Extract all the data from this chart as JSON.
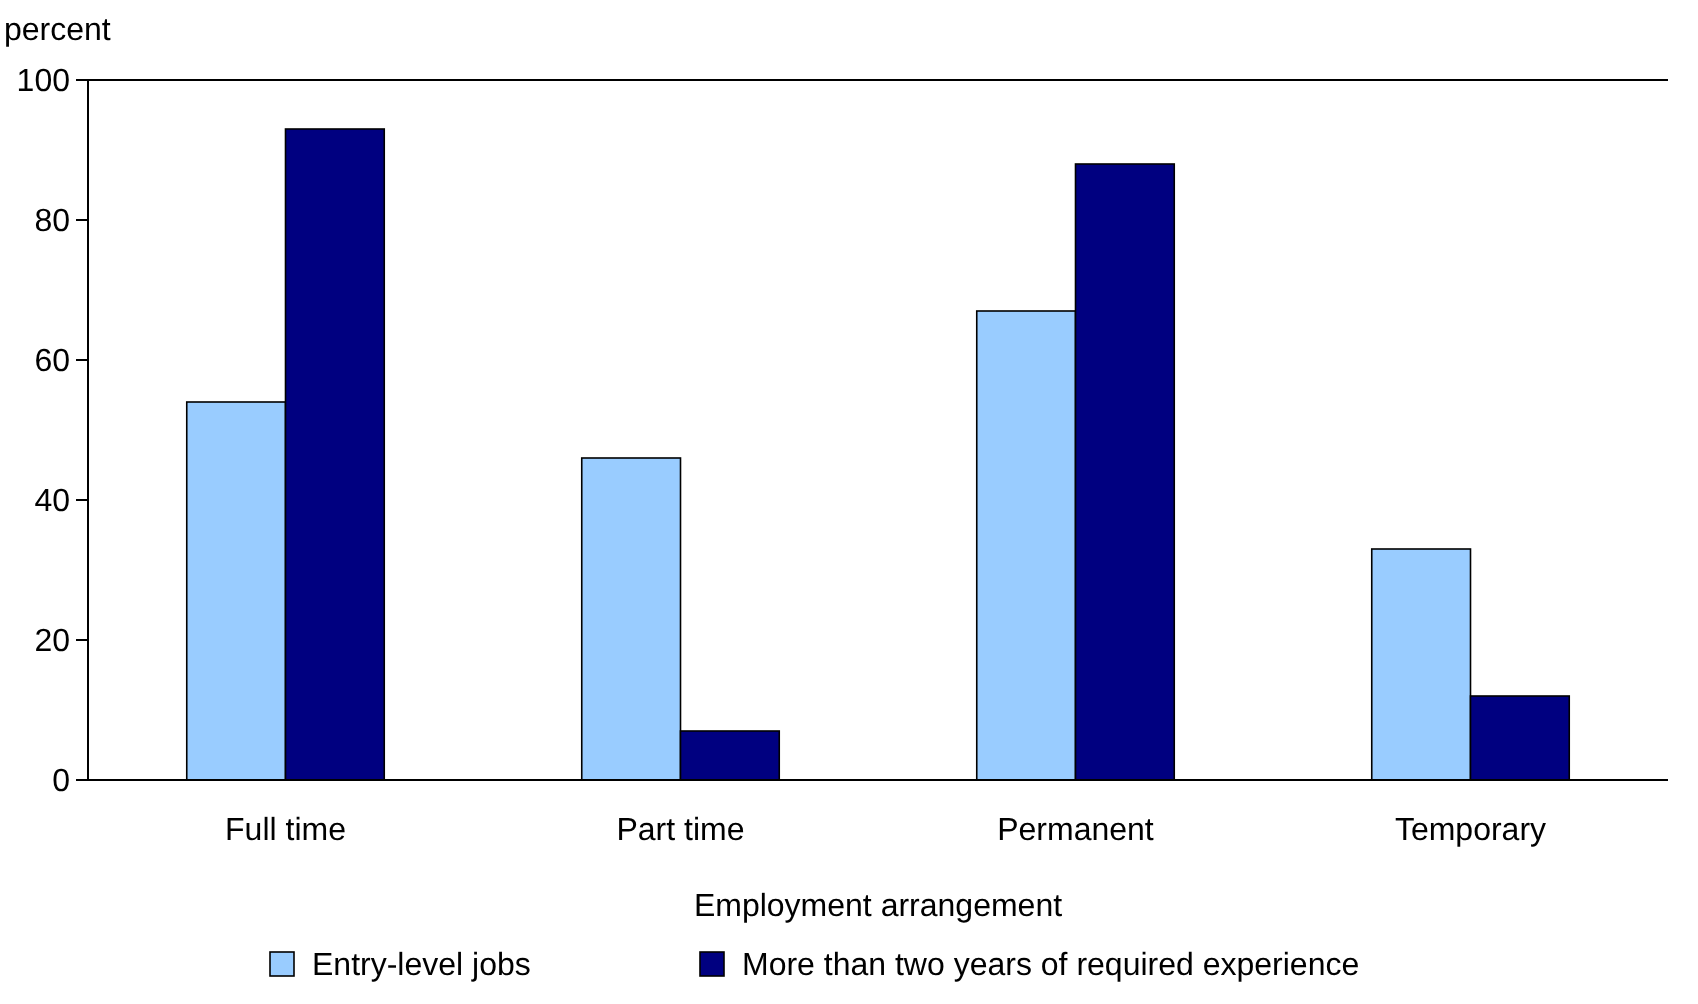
{
  "chart_data": {
    "type": "bar",
    "xlabel": "Employment arrangement",
    "ylabel": "percent",
    "categories": [
      "Full time",
      "Part time",
      "Permanent",
      "Temporary"
    ],
    "series": [
      {
        "name": "Entry-level jobs",
        "color": "#99ccff",
        "values": [
          54,
          46,
          67,
          33
        ]
      },
      {
        "name": "More than two years of required experience",
        "color": "#000080",
        "values": [
          93,
          7,
          88,
          12
        ]
      }
    ],
    "ylim": [
      0,
      100
    ],
    "yticks": [
      0,
      20,
      40,
      60,
      80,
      100
    ],
    "grid": false,
    "legend": "bottom"
  }
}
